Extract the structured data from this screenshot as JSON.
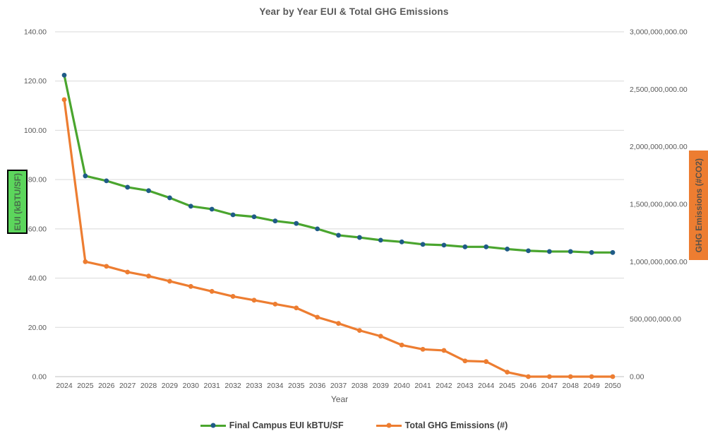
{
  "title": "Year by Year EUI & Total GHG Emissions",
  "colors": {
    "title_text": "#595959",
    "tick_text": "#595959",
    "legend_text": "#3f3f3f",
    "gridline": "#d9d9d9",
    "baseline": "#bfbfbf",
    "eui_line": "#4aa52e",
    "eui_marker": "#1f5b87",
    "ghg_line": "#ed7d31",
    "ghg_marker": "#ed7d31",
    "eui_axis_box_bg": "#5cd65c",
    "eui_axis_box_text": "#47704a",
    "ghg_axis_box_bg": "#ed7d31",
    "ghg_axis_box_text": "#5a5248"
  },
  "chart_data": {
    "type": "line",
    "title": "Year by Year EUI & Total GHG Emissions",
    "xlabel": "Year",
    "grid": true,
    "legend_position": "bottom",
    "categories": [
      "2024",
      "2025",
      "2026",
      "2027",
      "2028",
      "2029",
      "2030",
      "2031",
      "2032",
      "2033",
      "2034",
      "2035",
      "2036",
      "2037",
      "2038",
      "2039",
      "2040",
      "2041",
      "2042",
      "2043",
      "2044",
      "2045",
      "2046",
      "2047",
      "2048",
      "2049",
      "2050"
    ],
    "y_left": {
      "label": "EUI (kBTU/SF)",
      "min": 0,
      "max": 140,
      "ticks": [
        {
          "value": 0,
          "label": "0.00"
        },
        {
          "value": 20,
          "label": "20.00"
        },
        {
          "value": 40,
          "label": "40.00"
        },
        {
          "value": 60,
          "label": "60.00"
        },
        {
          "value": 80,
          "label": "80.00"
        },
        {
          "value": 100,
          "label": "100.00"
        },
        {
          "value": 120,
          "label": "120.00"
        },
        {
          "value": 140,
          "label": "140.00"
        }
      ]
    },
    "y_right": {
      "label": "GHG Emissions (#CO2)",
      "min": 0,
      "max": 3000000000,
      "ticks": [
        {
          "value": 0,
          "label": "0.00"
        },
        {
          "value": 500000000,
          "label": "500,000,000.00"
        },
        {
          "value": 1000000000,
          "label": "1,000,000,000.00"
        },
        {
          "value": 1500000000,
          "label": "1,500,000,000.00"
        },
        {
          "value": 2000000000,
          "label": "2,000,000,000.00"
        },
        {
          "value": 2500000000,
          "label": "2,500,000,000.00"
        },
        {
          "value": 3000000000,
          "label": "3,000,000,000.00"
        }
      ]
    },
    "series": [
      {
        "name": "Final Campus EUI kBTU/SF",
        "axis": "left",
        "line_color": "#4aa52e",
        "marker_color": "#1f5b87",
        "values": [
          122.4,
          81.5,
          79.5,
          76.9,
          75.5,
          72.6,
          69.2,
          68.0,
          65.7,
          64.9,
          63.2,
          62.2,
          60.0,
          57.4,
          56.5,
          55.4,
          54.7,
          53.7,
          53.4,
          52.7,
          52.7,
          51.8,
          51.1,
          50.8,
          50.8,
          50.4,
          50.4
        ]
      },
      {
        "name": "Total GHG Emissions (#)",
        "axis": "right",
        "line_color": "#ed7d31",
        "marker_color": "#ed7d31",
        "values": [
          2410000000,
          1000000000,
          960000000,
          910000000,
          875000000,
          830000000,
          785000000,
          742000000,
          698000000,
          665000000,
          631000000,
          598000000,
          517000000,
          463000000,
          402000000,
          352000000,
          275000000,
          238000000,
          228000000,
          137000000,
          131000000,
          39000000,
          0,
          0,
          0,
          0,
          0
        ]
      }
    ]
  }
}
